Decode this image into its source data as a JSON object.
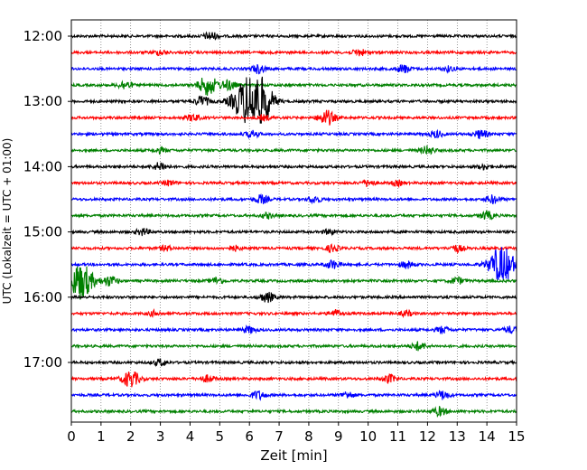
{
  "chart_data": {
    "type": "line",
    "title": "",
    "xlabel": "Zeit  [min]",
    "ylabel": "UTC (Lokalzeit = UTC + 01:00)",
    "xlim": [
      0,
      15
    ],
    "x_ticks": [
      "0",
      "1",
      "2",
      "3",
      "4",
      "5",
      "6",
      "7",
      "8",
      "9",
      "10",
      "11",
      "12",
      "13",
      "14",
      "15"
    ],
    "y_ticks": [
      "12:00",
      "13:00",
      "14:00",
      "15:00",
      "16:00",
      "17:00"
    ],
    "grid": "vertical dotted",
    "trace_colors": [
      "#000000",
      "#ff0000",
      "#0000ff",
      "#008000"
    ],
    "traces": [
      {
        "start": "12:00",
        "color": "#000000",
        "events": [
          [
            4.7,
            0.5
          ]
        ]
      },
      {
        "start": "12:15",
        "color": "#ff0000",
        "events": [
          [
            3.0,
            0.3
          ],
          [
            9.7,
            0.4
          ]
        ]
      },
      {
        "start": "12:30",
        "color": "#0000ff",
        "events": [
          [
            6.3,
            0.5
          ],
          [
            11.2,
            0.5
          ],
          [
            12.7,
            0.3
          ]
        ]
      },
      {
        "start": "12:45",
        "color": "#008000",
        "events": [
          [
            1.8,
            0.5
          ],
          [
            4.6,
            1.2
          ],
          [
            5.3,
            0.6
          ]
        ]
      },
      {
        "start": "13:00",
        "color": "#000000",
        "events": [
          [
            4.4,
            0.6
          ],
          [
            6.0,
            3.0
          ],
          [
            6.5,
            1.5
          ]
        ]
      },
      {
        "start": "13:15",
        "color": "#ff0000",
        "events": [
          [
            4.1,
            0.4
          ],
          [
            8.6,
            0.9
          ],
          [
            6.5,
            0.3
          ]
        ]
      },
      {
        "start": "13:30",
        "color": "#0000ff",
        "events": [
          [
            6.1,
            0.4
          ],
          [
            12.3,
            0.4
          ],
          [
            13.8,
            0.5
          ]
        ]
      },
      {
        "start": "13:45",
        "color": "#008000",
        "events": [
          [
            3.0,
            0.3
          ],
          [
            12.0,
            0.5
          ]
        ]
      },
      {
        "start": "14:00",
        "color": "#000000",
        "events": [
          [
            3.0,
            0.5
          ],
          [
            13.9,
            0.3
          ]
        ]
      },
      {
        "start": "14:15",
        "color": "#ff0000",
        "events": [
          [
            3.3,
            0.3
          ],
          [
            10.0,
            0.4
          ],
          [
            11.0,
            0.3
          ]
        ]
      },
      {
        "start": "14:30",
        "color": "#0000ff",
        "events": [
          [
            6.4,
            0.5
          ],
          [
            8.2,
            0.4
          ],
          [
            14.2,
            0.5
          ]
        ]
      },
      {
        "start": "14:45",
        "color": "#008000",
        "events": [
          [
            6.6,
            0.3
          ],
          [
            14.0,
            0.5
          ]
        ]
      },
      {
        "start": "15:00",
        "color": "#000000",
        "events": [
          [
            2.4,
            0.4
          ],
          [
            8.7,
            0.3
          ]
        ]
      },
      {
        "start": "15:15",
        "color": "#ff0000",
        "events": [
          [
            3.2,
            0.3
          ],
          [
            5.5,
            0.3
          ],
          [
            8.8,
            0.4
          ],
          [
            13.0,
            0.4
          ]
        ]
      },
      {
        "start": "15:30",
        "color": "#0000ff",
        "events": [
          [
            8.8,
            0.5
          ],
          [
            11.3,
            0.4
          ],
          [
            14.5,
            2.2
          ]
        ]
      },
      {
        "start": "15:45",
        "color": "#008000",
        "events": [
          [
            0.3,
            2.2
          ],
          [
            1.3,
            0.6
          ],
          [
            4.9,
            0.4
          ],
          [
            13.0,
            0.4
          ]
        ]
      },
      {
        "start": "16:00",
        "color": "#000000",
        "events": [
          [
            6.6,
            0.6
          ]
        ]
      },
      {
        "start": "16:15",
        "color": "#ff0000",
        "events": [
          [
            2.8,
            0.3
          ],
          [
            8.9,
            0.4
          ],
          [
            11.3,
            0.3
          ]
        ]
      },
      {
        "start": "16:30",
        "color": "#0000ff",
        "events": [
          [
            6.0,
            0.4
          ],
          [
            12.5,
            0.4
          ],
          [
            14.8,
            0.4
          ]
        ]
      },
      {
        "start": "16:45",
        "color": "#008000",
        "events": [
          [
            11.7,
            0.5
          ]
        ]
      },
      {
        "start": "17:00",
        "color": "#000000",
        "events": [
          [
            3.0,
            0.4
          ]
        ]
      },
      {
        "start": "17:15",
        "color": "#ff0000",
        "events": [
          [
            2.0,
            1.0
          ],
          [
            4.6,
            0.4
          ],
          [
            10.7,
            0.5
          ]
        ]
      },
      {
        "start": "17:30",
        "color": "#0000ff",
        "events": [
          [
            6.3,
            0.5
          ],
          [
            9.3,
            0.4
          ],
          [
            12.5,
            0.5
          ]
        ]
      },
      {
        "start": "17:45",
        "color": "#008000",
        "events": [
          [
            12.4,
            0.5
          ]
        ]
      }
    ]
  }
}
